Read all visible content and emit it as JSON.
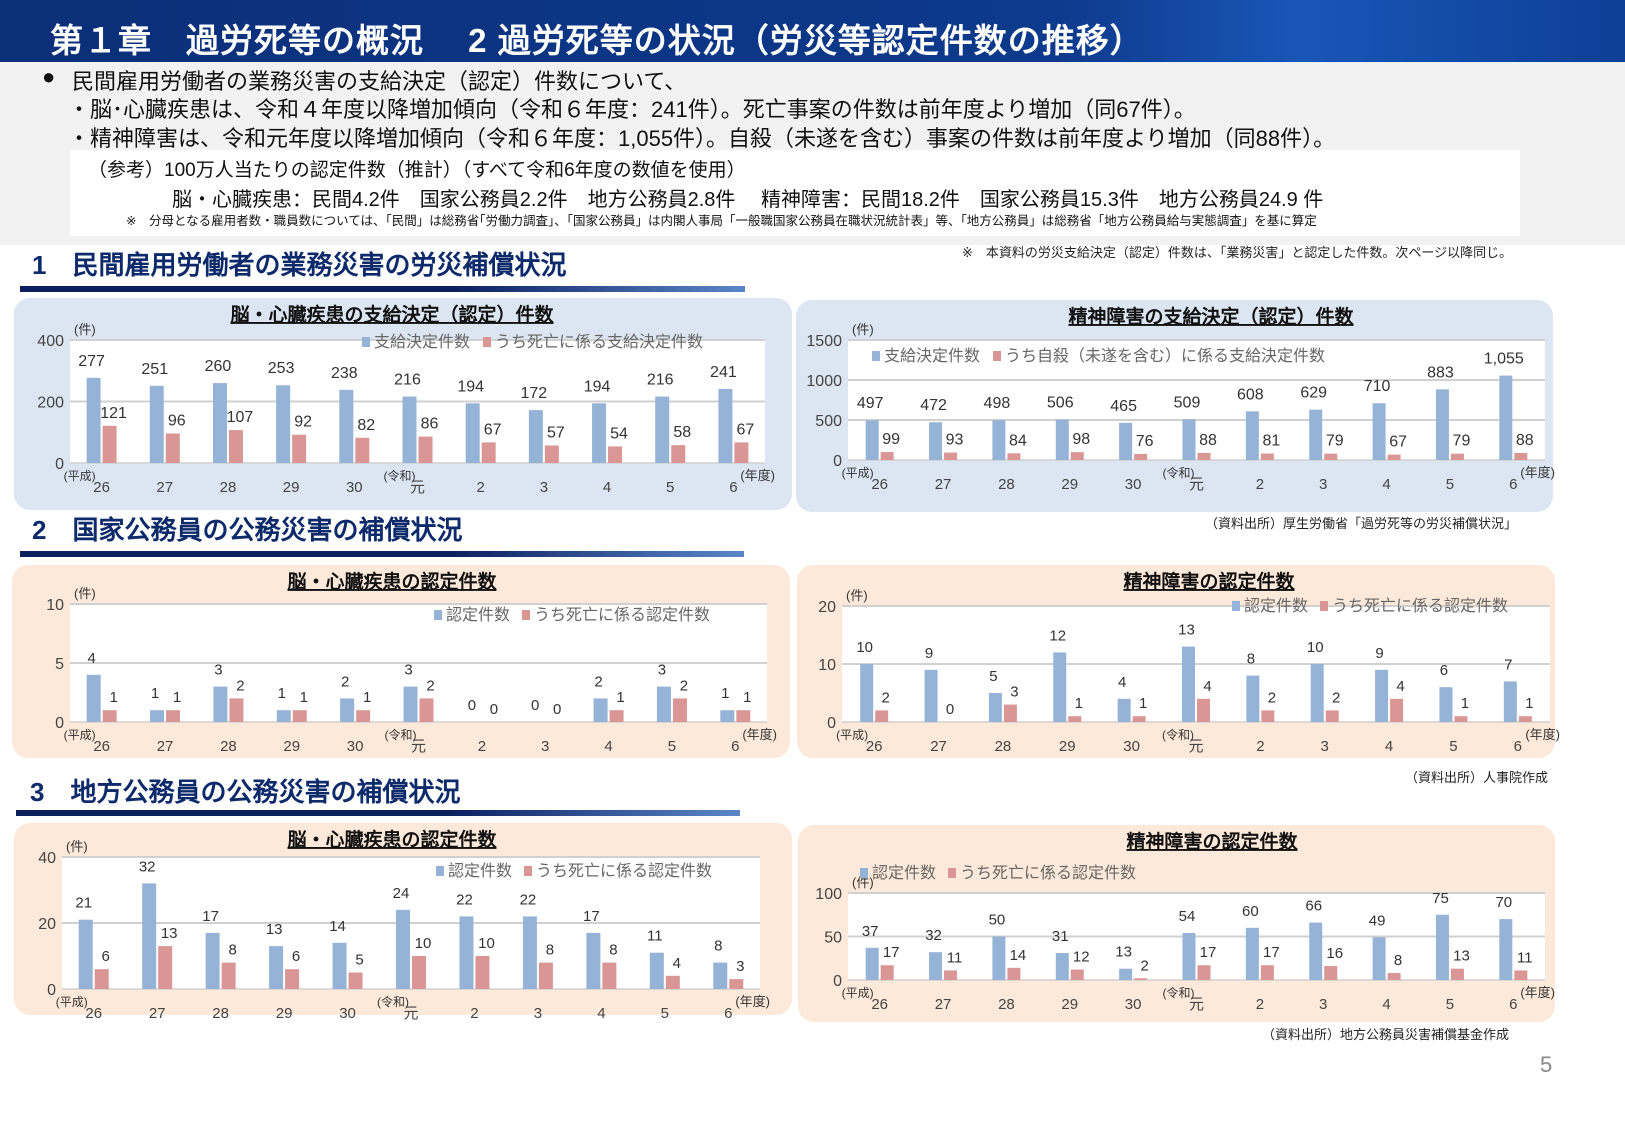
{
  "header": {
    "title": "第１章　過労死等の概況　 2 過労死等の状況（労災等認定件数の推移）"
  },
  "summary": {
    "bullet": "●",
    "lines": [
      "民間雇用労働者の業務災害の支給決定（認定）件数について、",
      "・脳･心臓疾患は、令和４年度以降増加傾向（令和６年度：241件）。死亡事案の件数は前年度より増加（同67件）。",
      "・精神障害は、令和元年度以降増加傾向（令和６年度：1,055件）。自殺（未遂を含む）事案の件数は前年度より増加（同88件）。"
    ],
    "reference": {
      "heading": "（参考）100万人当たりの認定件数（推計）（すべて令和6年度の数値を使用）",
      "values": "脳・心臓疾患：民間4.2件　国家公務員2.2件　地方公務員2.8件　 精神障害：民間18.2件　国家公務員15.3件　地方公務員24.9 件",
      "note": "※　分母となる雇用者数・職員数については、「民間」は総務省｢労働力調査｣、「国家公務員」は内閣人事局「一般職国家公務員在職状況統計表」等、「地方公務員」は総務省「地方公務員給与実態調査」を基に算定"
    }
  },
  "sections": [
    {
      "heading": "1　民間雇用労働者の業務災害の労災補償状況",
      "note": "※　本資料の労災支給決定（認定）件数は、「業務災害」と認定した件数。次ページ以降同じ。",
      "source": "（資料出所）厚生労働省「過労死等の労災補償状況」"
    },
    {
      "heading": "2　国家公務員の公務災害の補償状況",
      "source": "（資料出所）人事院作成"
    },
    {
      "heading": "3　地方公務員の公務災害の補償状況",
      "source": "（資料出所）地方公務員災害補償基金作成"
    }
  ],
  "page_number": "5",
  "colors": {
    "primary_series": "#95b3d7",
    "secondary_series": "#da9694",
    "panel_blue": "#dce6f2",
    "panel_peach": "#fde9d9",
    "title_bar": "#0d3a8c"
  },
  "chart_data": [
    {
      "type": "bar",
      "title": "脳・心臓疾患の支給決定（認定）件数",
      "unit": "(件)",
      "ylim": [
        0,
        400
      ],
      "yticks": [
        0,
        200,
        400
      ],
      "grid": true,
      "legend": "top-right",
      "categories": [
        "26",
        "27",
        "28",
        "29",
        "30",
        "元",
        "2",
        "3",
        "4",
        "5",
        "6"
      ],
      "era_labels": [
        "(平成)",
        "(令和)"
      ],
      "xunit": "(年度)",
      "series": [
        {
          "name": "支給決定件数",
          "values": [
            277,
            251,
            260,
            253,
            238,
            216,
            194,
            172,
            194,
            216,
            241
          ]
        },
        {
          "name": "うち死亡に係る支給決定件数",
          "values": [
            121,
            96,
            107,
            92,
            82,
            86,
            67,
            57,
            54,
            58,
            67
          ]
        }
      ]
    },
    {
      "type": "bar",
      "title": "精神障害の支給決定（認定）件数",
      "unit": "(件)",
      "ylim": [
        0,
        1500
      ],
      "yticks": [
        0,
        500,
        1000,
        1500
      ],
      "grid": true,
      "legend": "top-left",
      "categories": [
        "26",
        "27",
        "28",
        "29",
        "30",
        "元",
        "2",
        "3",
        "4",
        "5",
        "6"
      ],
      "era_labels": [
        "(平成)",
        "(令和)"
      ],
      "xunit": "(年度)",
      "series": [
        {
          "name": "支給決定件数",
          "values": [
            497,
            472,
            498,
            506,
            465,
            509,
            608,
            629,
            710,
            883,
            1055
          ]
        },
        {
          "name": "うち自殺（未遂を含む）に係る支給決定件数",
          "values": [
            99,
            93,
            84,
            98,
            76,
            88,
            81,
            79,
            67,
            79,
            88
          ]
        }
      ]
    },
    {
      "type": "bar",
      "title": "脳・心臓疾患の認定件数",
      "unit": "(件)",
      "ylim": [
        0,
        10
      ],
      "yticks": [
        0,
        5,
        10
      ],
      "grid": true,
      "legend": "top-right",
      "categories": [
        "26",
        "27",
        "28",
        "29",
        "30",
        "元",
        "2",
        "3",
        "4",
        "5",
        "6"
      ],
      "era_labels": [
        "(平成)",
        "(令和)"
      ],
      "xunit": "(年度)",
      "series": [
        {
          "name": "認定件数",
          "values": [
            4,
            1,
            3,
            1,
            2,
            3,
            0,
            0,
            2,
            3,
            1
          ]
        },
        {
          "name": "うち死亡に係る認定件数",
          "values": [
            1,
            1,
            2,
            1,
            1,
            2,
            0,
            0,
            1,
            2,
            1
          ]
        }
      ]
    },
    {
      "type": "bar",
      "title": "精神障害の認定件数",
      "unit": "(件)",
      "ylim": [
        0,
        20
      ],
      "yticks": [
        0,
        10,
        20
      ],
      "grid": true,
      "legend": "top-right",
      "categories": [
        "26",
        "27",
        "28",
        "29",
        "30",
        "元",
        "2",
        "3",
        "4",
        "5",
        "6"
      ],
      "era_labels": [
        "(平成)",
        "(令和)"
      ],
      "xunit": "(年度)",
      "series": [
        {
          "name": "認定件数",
          "values": [
            10,
            9,
            5,
            12,
            4,
            13,
            8,
            10,
            9,
            6,
            7
          ]
        },
        {
          "name": "うち死亡に係る認定件数",
          "values": [
            2,
            0,
            3,
            1,
            1,
            4,
            2,
            2,
            4,
            1,
            1
          ]
        }
      ]
    },
    {
      "type": "bar",
      "title": "脳・心臓疾患の認定件数",
      "unit": "(件)",
      "ylim": [
        0,
        40
      ],
      "yticks": [
        0,
        20,
        40
      ],
      "grid": true,
      "legend": "top-right",
      "categories": [
        "26",
        "27",
        "28",
        "29",
        "30",
        "元",
        "2",
        "3",
        "4",
        "5",
        "6"
      ],
      "era_labels": [
        "(平成)",
        "(令和)"
      ],
      "xunit": "(年度)",
      "series": [
        {
          "name": "認定件数",
          "values": [
            21,
            32,
            17,
            13,
            14,
            24,
            22,
            22,
            17,
            11,
            8
          ]
        },
        {
          "name": "うち死亡に係る認定件数",
          "values": [
            6,
            13,
            8,
            6,
            5,
            10,
            10,
            8,
            8,
            4,
            3
          ]
        }
      ]
    },
    {
      "type": "bar",
      "title": "精神障害の認定件数",
      "unit": "(件)",
      "ylim": [
        0,
        100
      ],
      "yticks": [
        0,
        50,
        100
      ],
      "grid": true,
      "legend": "top-left",
      "categories": [
        "26",
        "27",
        "28",
        "29",
        "30",
        "元",
        "2",
        "3",
        "4",
        "5",
        "6"
      ],
      "era_labels": [
        "(平成)",
        "(令和)"
      ],
      "xunit": "(年度)",
      "series": [
        {
          "name": "認定件数",
          "values": [
            37,
            32,
            50,
            31,
            13,
            54,
            60,
            66,
            49,
            75,
            70
          ]
        },
        {
          "name": "うち死亡に係る認定件数",
          "values": [
            17,
            11,
            14,
            12,
            2,
            17,
            17,
            16,
            8,
            13,
            11
          ]
        }
      ]
    }
  ]
}
